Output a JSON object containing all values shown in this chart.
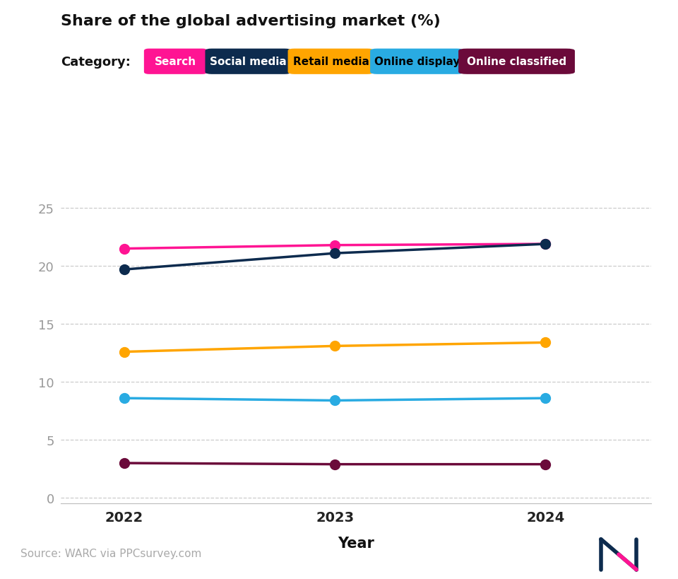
{
  "title": "Share of the global advertising market (%)",
  "xlabel": "Year",
  "years": [
    2022,
    2023,
    2024
  ],
  "series": [
    {
      "name": "Search",
      "values": [
        21.5,
        21.8,
        21.9
      ],
      "color": "#FF1493",
      "label_color": "#FFFFFF",
      "bg_color": "#FF1493"
    },
    {
      "name": "Social media",
      "values": [
        19.7,
        21.1,
        21.9
      ],
      "color": "#0D2B4E",
      "label_color": "#FFFFFF",
      "bg_color": "#0D2B4E"
    },
    {
      "name": "Retail media",
      "values": [
        12.6,
        13.1,
        13.4
      ],
      "color": "#FFA500",
      "label_color": "#000000",
      "bg_color": "#FFA500"
    },
    {
      "name": "Online display",
      "values": [
        8.6,
        8.4,
        8.6
      ],
      "color": "#29ABE2",
      "label_color": "#000000",
      "bg_color": "#29ABE2"
    },
    {
      "name": "Online classified",
      "values": [
        3.0,
        2.9,
        2.9
      ],
      "color": "#6B0A3A",
      "label_color": "#FFFFFF",
      "bg_color": "#6B0A3A"
    }
  ],
  "yticks": [
    0,
    5,
    10,
    15,
    20,
    25
  ],
  "ylim": [
    -0.5,
    27
  ],
  "source_text": "Source: WARC via PPCsurvey.com",
  "title_underline_color": "#FF1493",
  "bg_color": "#FFFFFF",
  "footer_bg": "#F0F1F8",
  "marker_size": 10,
  "line_width": 2.5,
  "category_label": "Category:",
  "pill_names": [
    "Search",
    "Social media",
    "Retail media",
    "Online display",
    "Online classified"
  ],
  "pill_bg_colors": [
    "#FF1493",
    "#0D2B4E",
    "#FFA500",
    "#29ABE2",
    "#6B0A3A"
  ],
  "pill_fg_colors": [
    "#FFFFFF",
    "#FFFFFF",
    "#000000",
    "#000000",
    "#FFFFFF"
  ]
}
